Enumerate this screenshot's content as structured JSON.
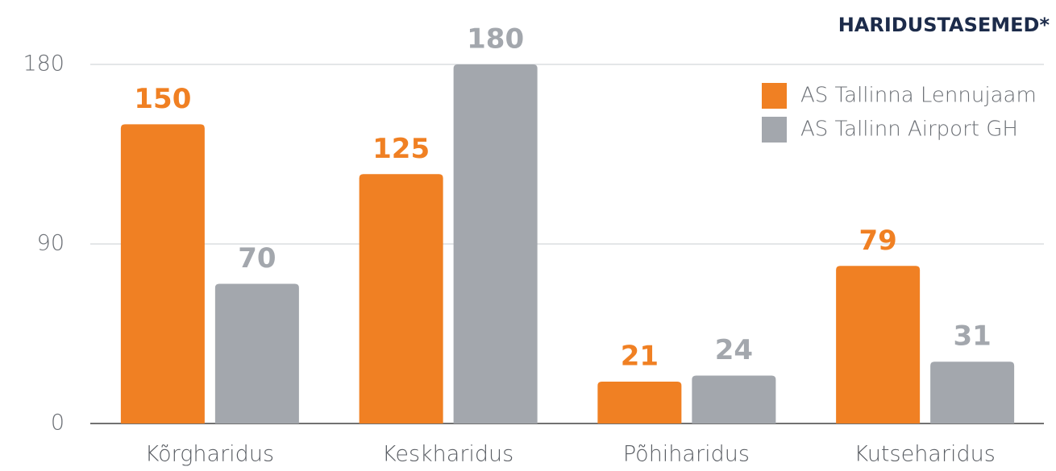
{
  "chart_data": {
    "type": "bar",
    "title": "HARIDUSTASEMED*",
    "categories": [
      "Kõrgharidus",
      "Keskharidus",
      "Põhiharidus",
      "Kutseharidus"
    ],
    "series": [
      {
        "name": "AS Tallinna Lennujaam",
        "color": "#f08023",
        "values": [
          150,
          125,
          21,
          79
        ]
      },
      {
        "name": "AS Tallinn Airport GH",
        "color": "#a3a7ad",
        "values": [
          70,
          180,
          24,
          31
        ]
      }
    ],
    "ylim": [
      0,
      180
    ],
    "yticks": [
      0,
      90,
      180
    ],
    "grid": true,
    "legend": "top-right"
  }
}
